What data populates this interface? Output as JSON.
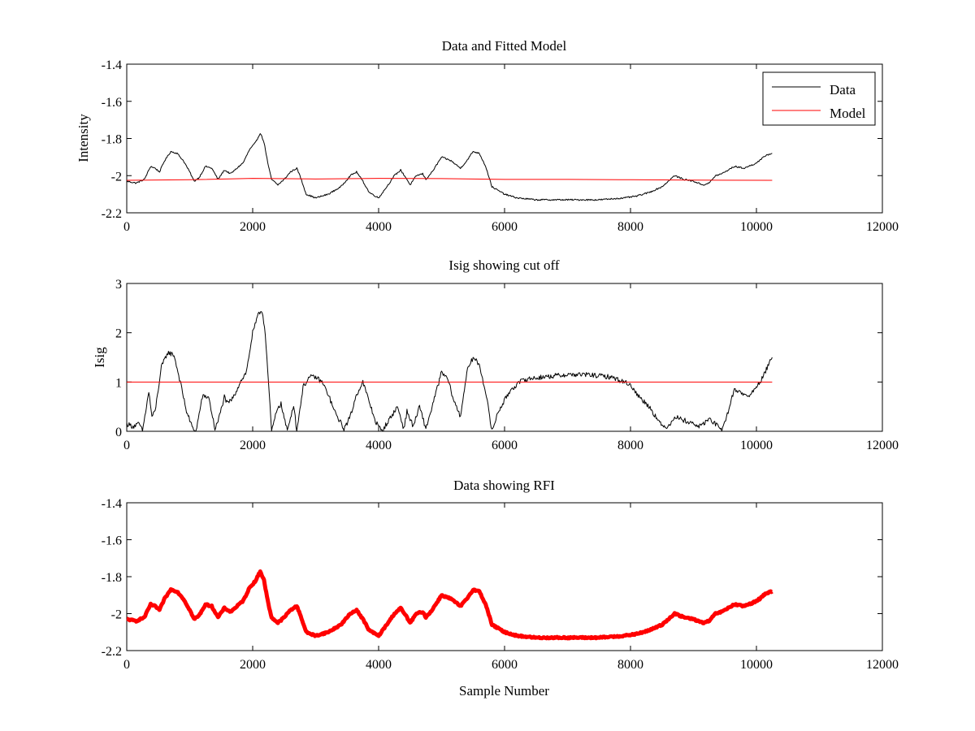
{
  "colors": {
    "data": "#000000",
    "model": "#ff0000",
    "rfi": "#ff0000",
    "axes": "#000000",
    "background": "#ffffff"
  },
  "chart_data": [
    {
      "type": "line",
      "title": "Data and Fitted Model",
      "xlabel": "",
      "ylabel": "Intensity",
      "xlim": [
        0,
        12000
      ],
      "ylim": [
        -2.2,
        -1.4
      ],
      "xticks": [
        "0",
        "2000",
        "4000",
        "6000",
        "8000",
        "10000",
        "12000"
      ],
      "yticks": [
        "-1.4",
        "-1.6",
        "-1.8",
        "-2",
        "-2.2"
      ],
      "legend": {
        "position": "top-right",
        "entries": [
          "Data",
          "Model"
        ]
      },
      "series": [
        {
          "name": "Data",
          "color": "#000000",
          "noise": 0.004,
          "x": [
            0,
            150,
            280,
            380,
            450,
            520,
            600,
            700,
            800,
            900,
            1000,
            1070,
            1150,
            1250,
            1350,
            1450,
            1550,
            1650,
            1750,
            1850,
            1950,
            2050,
            2120,
            2180,
            2250,
            2300,
            2400,
            2500,
            2600,
            2700,
            2750,
            2850,
            3000,
            3200,
            3400,
            3550,
            3650,
            3750,
            3850,
            4000,
            4150,
            4250,
            4350,
            4450,
            4500,
            4600,
            4700,
            4750,
            4850,
            5000,
            5150,
            5300,
            5400,
            5500,
            5600,
            5700,
            5800,
            6000,
            6200,
            6500,
            7000,
            7500,
            7900,
            8100,
            8300,
            8500,
            8700,
            8850,
            9000,
            9150,
            9250,
            9350,
            9450,
            9550,
            9650,
            9800,
            9950,
            10050,
            10150,
            10250
          ],
          "y": [
            -2.03,
            -2.04,
            -2.02,
            -1.95,
            -1.96,
            -1.98,
            -1.92,
            -1.87,
            -1.88,
            -1.92,
            -1.98,
            -2.03,
            -2.01,
            -1.95,
            -1.96,
            -2.02,
            -1.97,
            -1.99,
            -1.96,
            -1.93,
            -1.86,
            -1.82,
            -1.77,
            -1.82,
            -1.95,
            -2.02,
            -2.05,
            -2.02,
            -1.98,
            -1.96,
            -2.0,
            -2.1,
            -2.12,
            -2.1,
            -2.06,
            -2.0,
            -1.98,
            -2.03,
            -2.09,
            -2.12,
            -2.05,
            -2.0,
            -1.97,
            -2.02,
            -2.05,
            -2.0,
            -1.99,
            -2.02,
            -1.98,
            -1.9,
            -1.92,
            -1.96,
            -1.92,
            -1.87,
            -1.88,
            -1.95,
            -2.06,
            -2.1,
            -2.12,
            -2.13,
            -2.13,
            -2.13,
            -2.12,
            -2.11,
            -2.09,
            -2.06,
            -2.0,
            -2.02,
            -2.03,
            -2.05,
            -2.04,
            -2.0,
            -1.99,
            -1.97,
            -1.95,
            -1.96,
            -1.94,
            -1.92,
            -1.89,
            -1.88
          ]
        },
        {
          "name": "Model",
          "color": "#ff0000",
          "noise": 0,
          "x": [
            0,
            1000,
            2000,
            3000,
            4000,
            5000,
            6000,
            7000,
            8000,
            9000,
            10250
          ],
          "y": [
            -2.025,
            -2.022,
            -2.015,
            -2.018,
            -2.015,
            -2.016,
            -2.02,
            -2.02,
            -2.022,
            -2.024,
            -2.025
          ]
        }
      ]
    },
    {
      "type": "line",
      "title": "Isig showing cut off",
      "xlabel": "",
      "ylabel": "Isig",
      "xlim": [
        0,
        12000
      ],
      "ylim": [
        0,
        3
      ],
      "xticks": [
        "0",
        "2000",
        "4000",
        "6000",
        "8000",
        "10000",
        "12000"
      ],
      "yticks": [
        "3",
        "2",
        "1",
        "0"
      ],
      "series": [
        {
          "name": "",
          "color": "#000000",
          "noise": 0.05,
          "x": [
            0,
            100,
            200,
            250,
            350,
            400,
            450,
            550,
            650,
            750,
            850,
            950,
            1050,
            1100,
            1200,
            1300,
            1400,
            1450,
            1550,
            1600,
            1700,
            1800,
            1900,
            2000,
            2100,
            2150,
            2200,
            2250,
            2300,
            2400,
            2450,
            2550,
            2650,
            2700,
            2800,
            2900,
            3000,
            3100,
            3200,
            3300,
            3450,
            3550,
            3650,
            3750,
            3850,
            3950,
            4050,
            4150,
            4300,
            4400,
            4450,
            4550,
            4650,
            4750,
            4850,
            5000,
            5100,
            5200,
            5300,
            5400,
            5500,
            5600,
            5700,
            5800,
            5900,
            6100,
            6300,
            6600,
            7000,
            7300,
            7700,
            8000,
            8100,
            8300,
            8500,
            8600,
            8700,
            8900,
            9000,
            9100,
            9250,
            9350,
            9450,
            9550,
            9650,
            9750,
            9850,
            9950,
            10100,
            10250
          ],
          "y": [
            0.15,
            0.1,
            0.15,
            0.0,
            0.8,
            0.3,
            0.4,
            1.3,
            1.6,
            1.55,
            1.0,
            0.4,
            0.05,
            0.0,
            0.7,
            0.7,
            0.05,
            0.2,
            0.7,
            0.55,
            0.7,
            1.0,
            1.2,
            2.0,
            2.4,
            2.45,
            2.0,
            1.0,
            0.0,
            0.5,
            0.55,
            0.0,
            0.55,
            0.0,
            0.9,
            1.1,
            1.1,
            1.0,
            0.75,
            0.4,
            0.05,
            0.3,
            0.75,
            1.0,
            0.6,
            0.2,
            0.0,
            0.2,
            0.5,
            0.05,
            0.4,
            0.1,
            0.5,
            0.05,
            0.5,
            1.2,
            1.05,
            0.6,
            0.3,
            1.2,
            1.5,
            1.35,
            0.8,
            0.0,
            0.4,
            0.85,
            1.05,
            1.1,
            1.15,
            1.15,
            1.1,
            0.95,
            0.75,
            0.5,
            0.1,
            0.1,
            0.3,
            0.2,
            0.15,
            0.1,
            0.25,
            0.15,
            0.0,
            0.4,
            0.85,
            0.8,
            0.7,
            0.8,
            1.1,
            1.5
          ]
        },
        {
          "name": "",
          "color": "#ff0000",
          "noise": 0,
          "x": [
            0,
            10250
          ],
          "y": [
            1,
            1
          ]
        }
      ]
    },
    {
      "type": "line",
      "title": "Data showing RFI",
      "xlabel": "Sample Number",
      "ylabel": "",
      "xlim": [
        0,
        12000
      ],
      "ylim": [
        -2.2,
        -1.4
      ],
      "xticks": [
        "0",
        "2000",
        "4000",
        "6000",
        "8000",
        "10000",
        "12000"
      ],
      "yticks": [
        "-1.4",
        "-1.6",
        "-1.8",
        "-2",
        "-2.2"
      ],
      "series": [
        {
          "name": "",
          "color": "#ff0000",
          "noise": 0.004,
          "thick": true,
          "x": [
            0,
            150,
            280,
            380,
            450,
            520,
            600,
            700,
            800,
            900,
            1000,
            1070,
            1150,
            1250,
            1350,
            1450,
            1550,
            1650,
            1750,
            1850,
            1950,
            2050,
            2120,
            2180,
            2250,
            2300,
            2400,
            2500,
            2600,
            2700,
            2750,
            2850,
            3000,
            3200,
            3400,
            3550,
            3650,
            3750,
            3850,
            4000,
            4150,
            4250,
            4350,
            4450,
            4500,
            4600,
            4700,
            4750,
            4850,
            5000,
            5150,
            5300,
            5400,
            5500,
            5600,
            5700,
            5800,
            6000,
            6200,
            6500,
            7000,
            7500,
            7900,
            8100,
            8300,
            8500,
            8700,
            8850,
            9000,
            9150,
            9250,
            9350,
            9450,
            9550,
            9650,
            9800,
            9950,
            10050,
            10150,
            10250
          ],
          "y": [
            -2.03,
            -2.04,
            -2.02,
            -1.95,
            -1.96,
            -1.98,
            -1.92,
            -1.87,
            -1.88,
            -1.92,
            -1.98,
            -2.03,
            -2.01,
            -1.95,
            -1.96,
            -2.02,
            -1.97,
            -1.99,
            -1.96,
            -1.93,
            -1.86,
            -1.82,
            -1.77,
            -1.82,
            -1.95,
            -2.02,
            -2.05,
            -2.02,
            -1.98,
            -1.96,
            -2.0,
            -2.1,
            -2.12,
            -2.1,
            -2.06,
            -2.0,
            -1.98,
            -2.03,
            -2.09,
            -2.12,
            -2.05,
            -2.0,
            -1.97,
            -2.02,
            -2.05,
            -2.0,
            -1.99,
            -2.02,
            -1.98,
            -1.9,
            -1.92,
            -1.96,
            -1.92,
            -1.87,
            -1.88,
            -1.95,
            -2.06,
            -2.1,
            -2.12,
            -2.13,
            -2.13,
            -2.13,
            -2.12,
            -2.11,
            -2.09,
            -2.06,
            -2.0,
            -2.02,
            -2.03,
            -2.05,
            -2.04,
            -2.0,
            -1.99,
            -1.97,
            -1.95,
            -1.96,
            -1.94,
            -1.92,
            -1.89,
            -1.88
          ]
        }
      ]
    }
  ]
}
